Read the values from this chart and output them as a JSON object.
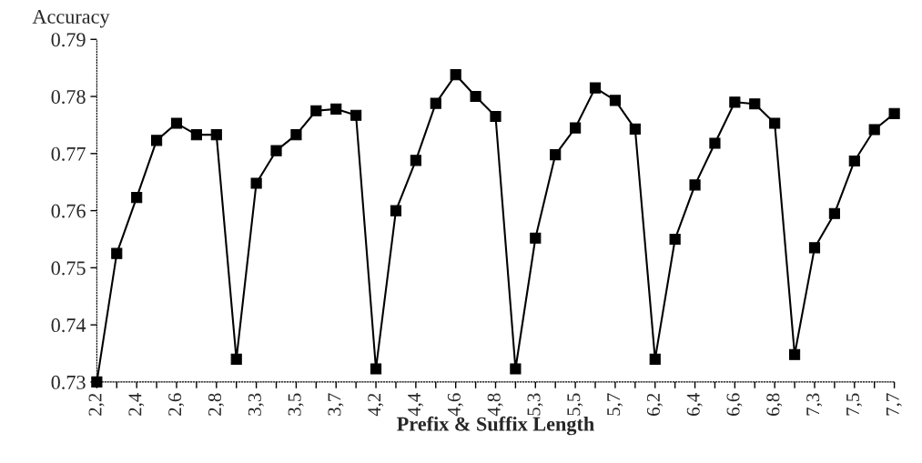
{
  "chart_data": {
    "type": "line",
    "xlabel": "Prefix & Suffix Length",
    "ylabel": "Accuracy",
    "categories": [
      "2,2",
      null,
      "2,4",
      null,
      "2,6",
      null,
      "2,8",
      null,
      "3,3",
      null,
      "3,5",
      null,
      "3,7",
      null,
      "4,2",
      null,
      "4,4",
      null,
      "4,6",
      null,
      "4,8",
      null,
      "5,3",
      null,
      "5,5",
      null,
      "5,7",
      null,
      "6,2",
      null,
      "6,4",
      null,
      "6,6",
      null,
      "6,8",
      null,
      "7,3",
      null,
      "7,5",
      null,
      "7,7"
    ],
    "series": [
      {
        "color": "#000000",
        "values": [
          0.73,
          0.7525,
          0.7623,
          0.7723,
          0.7753,
          0.7733,
          0.7733,
          0.734,
          0.7648,
          0.7705,
          0.7733,
          0.7775,
          0.7778,
          0.7767,
          0.7323,
          0.76,
          0.7688,
          0.7788,
          0.7838,
          0.78,
          0.7765,
          0.7323,
          0.7552,
          0.7698,
          0.7745,
          0.7815,
          0.7793,
          0.7743,
          0.734,
          0.755,
          0.7645,
          0.7718,
          0.779,
          0.7787,
          0.7753,
          0.7348,
          0.7535,
          0.7595,
          0.7687,
          0.7742,
          0.777
        ]
      }
    ],
    "ylim": [
      0.73,
      0.79
    ],
    "yticks": [
      0.73,
      0.74,
      0.75,
      0.76,
      0.77,
      0.78,
      0.79
    ],
    "grid": false,
    "legend": false,
    "marker": "square",
    "line_style": "solid"
  }
}
